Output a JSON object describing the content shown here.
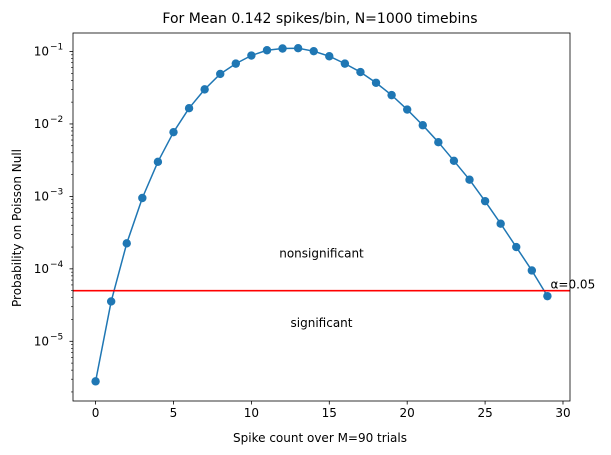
{
  "chart_data": {
    "type": "line",
    "title": "For Mean 0.142 spikes/bin, N=1000 timebins",
    "xlabel": "Spike count over M=90 trials",
    "ylabel": "Probability on Poisson Null",
    "yscale": "log",
    "xlim": [
      -1.45,
      30.45
    ],
    "ylim": [
      1.5e-06,
      0.18
    ],
    "xticks": [
      0,
      5,
      10,
      15,
      20,
      25,
      30
    ],
    "xtick_labels": [
      "0",
      "5",
      "10",
      "15",
      "20",
      "25",
      "30"
    ],
    "yticks": [
      1e-05,
      0.0001,
      0.001,
      0.01,
      0.1
    ],
    "ytick_labels": [
      {
        "base": "10",
        "exp": "−5"
      },
      {
        "base": "10",
        "exp": "−4"
      },
      {
        "base": "10",
        "exp": "−3"
      },
      {
        "base": "10",
        "exp": "−2"
      },
      {
        "base": "10",
        "exp": "−1"
      }
    ],
    "grid": false,
    "series": [
      {
        "color": "#1f77b4",
        "marker": "circle",
        "x": [
          0,
          1,
          2,
          3,
          4,
          5,
          6,
          7,
          8,
          9,
          10,
          11,
          12,
          13,
          14,
          15,
          16,
          17,
          18,
          19,
          20,
          21,
          22,
          23,
          24,
          25,
          26,
          27,
          28,
          29
        ],
        "y": [
          2.8e-06,
          3.55e-05,
          0.000225,
          0.00095,
          0.003,
          0.0077,
          0.0165,
          0.03,
          0.049,
          0.068,
          0.088,
          0.104,
          0.11,
          0.111,
          0.101,
          0.086,
          0.068,
          0.052,
          0.037,
          0.025,
          0.0158,
          0.0096,
          0.0056,
          0.0031,
          0.0017,
          0.00086,
          0.00042,
          0.0002,
          9.5e-05,
          4.2e-05
        ]
      }
    ],
    "threshold": {
      "y": 5e-05,
      "color": "#ff0000",
      "label": "α=0.05"
    },
    "annotations": [
      {
        "text": "nonsignificant",
        "x": 14.5,
        "y": 0.00016,
        "color": "#ff0000"
      },
      {
        "text": "significant",
        "x": 14.5,
        "y": 1.75e-05,
        "color": "#ff0000"
      }
    ]
  }
}
